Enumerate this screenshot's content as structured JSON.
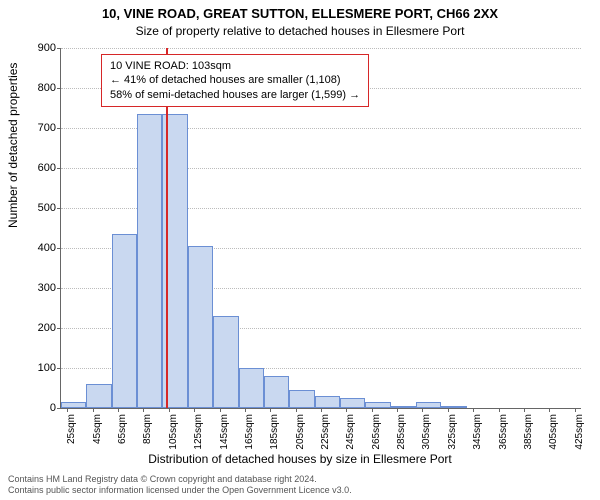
{
  "title_main": "10, VINE ROAD, GREAT SUTTON, ELLESMERE PORT, CH66 2XX",
  "title_sub": "Size of property relative to detached houses in Ellesmere Port",
  "ylabel": "Number of detached properties",
  "xlabel": "Distribution of detached houses by size in Ellesmere Port",
  "info_box": {
    "line1": "10 VINE ROAD: 103sqm",
    "line2": "← 41% of detached houses are smaller (1,108)",
    "line3": "58% of semi-detached houses are larger (1,599) →"
  },
  "footer": {
    "line1": "Contains HM Land Registry data © Crown copyright and database right 2024.",
    "line2": "Contains public sector information licensed under the Open Government Licence v3.0."
  },
  "chart": {
    "type": "histogram",
    "background_color": "#ffffff",
    "bar_fill": "#c9d8f0",
    "bar_stroke": "#6b8fd4",
    "grid_color": "#bcbcbc",
    "axis_color": "#666666",
    "marker_color": "#d62728",
    "ylim": [
      0,
      900
    ],
    "ytick_step": 100,
    "xlim": [
      20,
      430
    ],
    "xtick_start": 25,
    "xtick_step": 20,
    "xtick_suffix": "sqm",
    "bin_width": 20,
    "bins": [
      {
        "start": 20,
        "count": 15
      },
      {
        "start": 40,
        "count": 60
      },
      {
        "start": 60,
        "count": 435
      },
      {
        "start": 80,
        "count": 735
      },
      {
        "start": 100,
        "count": 735
      },
      {
        "start": 120,
        "count": 405
      },
      {
        "start": 140,
        "count": 230
      },
      {
        "start": 160,
        "count": 100
      },
      {
        "start": 180,
        "count": 80
      },
      {
        "start": 200,
        "count": 45
      },
      {
        "start": 220,
        "count": 30
      },
      {
        "start": 240,
        "count": 25
      },
      {
        "start": 260,
        "count": 15
      },
      {
        "start": 280,
        "count": 5
      },
      {
        "start": 300,
        "count": 15
      },
      {
        "start": 320,
        "count": 5
      },
      {
        "start": 340,
        "count": 0
      },
      {
        "start": 360,
        "count": 0
      },
      {
        "start": 380,
        "count": 0
      },
      {
        "start": 400,
        "count": 0
      },
      {
        "start": 420,
        "count": 0
      }
    ],
    "marker_x": 103,
    "label_fontsize": 12,
    "tick_fontsize": 11,
    "title_fontsize": 13
  }
}
